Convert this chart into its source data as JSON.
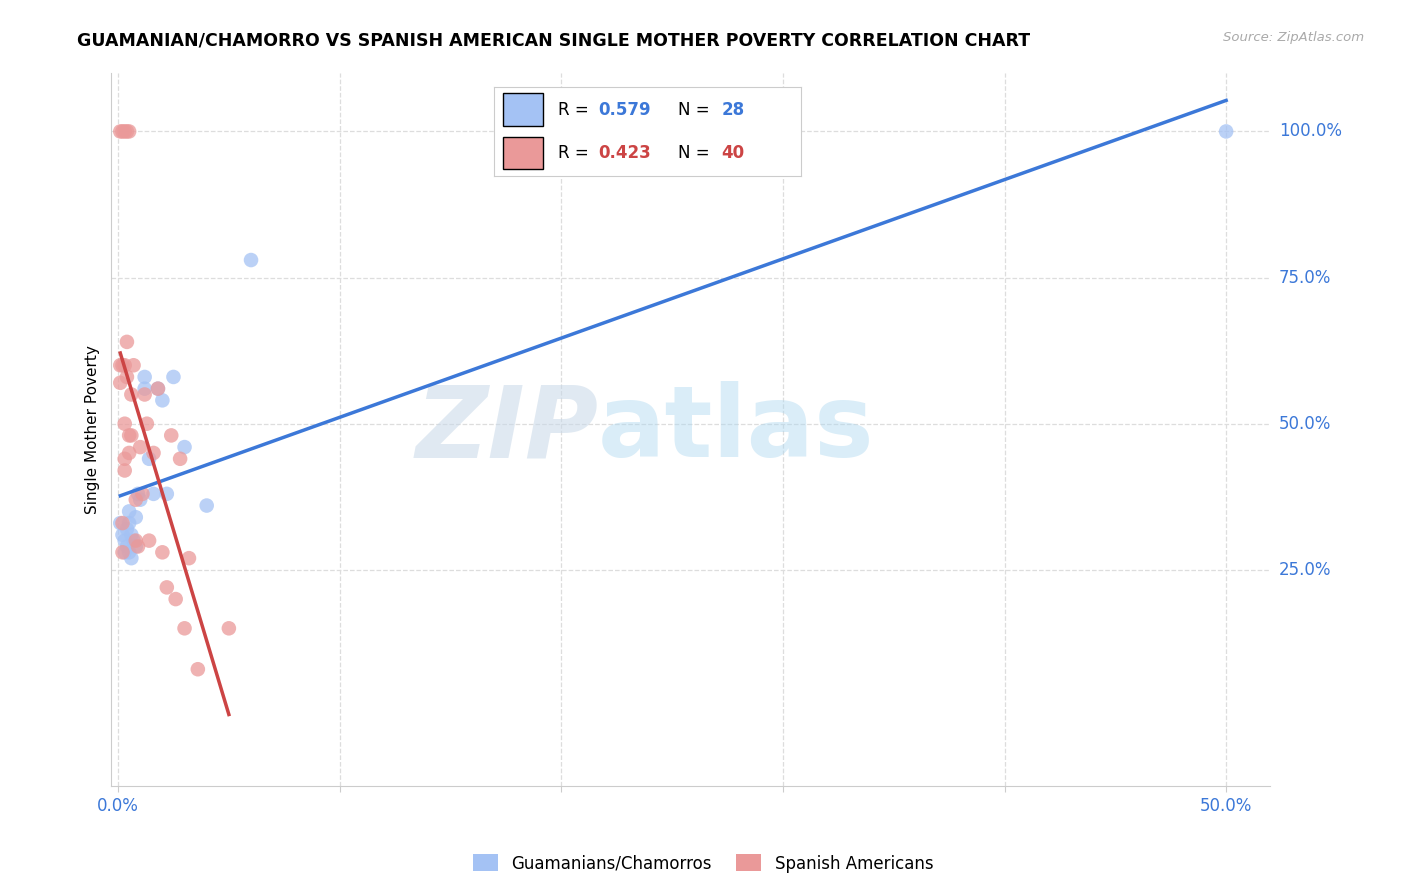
{
  "title": "GUAMANIAN/CHAMORRO VS SPANISH AMERICAN SINGLE MOTHER POVERTY CORRELATION CHART",
  "source": "Source: ZipAtlas.com",
  "ylabel": "Single Mother Poverty",
  "blue_color": "#a4c2f4",
  "pink_color": "#ea9999",
  "blue_line_color": "#3c78d8",
  "pink_line_color": "#cc4444",
  "r_blue": 0.579,
  "n_blue": 28,
  "r_pink": 0.423,
  "n_pink": 40,
  "legend_label_blue": "Guamanians/Chamorros",
  "legend_label_pink": "Spanish Americans",
  "watermark_zip": "ZIP",
  "watermark_atlas": "atlas",
  "xlim": [
    -0.003,
    0.52
  ],
  "ylim": [
    -0.12,
    1.1
  ],
  "blue_scatter_x": [
    0.001,
    0.002,
    0.003,
    0.003,
    0.004,
    0.004,
    0.005,
    0.005,
    0.005,
    0.006,
    0.006,
    0.007,
    0.008,
    0.008,
    0.009,
    0.01,
    0.012,
    0.012,
    0.014,
    0.016,
    0.018,
    0.02,
    0.022,
    0.025,
    0.03,
    0.04,
    0.06,
    0.5
  ],
  "blue_scatter_y": [
    0.33,
    0.31,
    0.3,
    0.28,
    0.32,
    0.29,
    0.35,
    0.33,
    0.28,
    0.31,
    0.27,
    0.3,
    0.34,
    0.29,
    0.38,
    0.37,
    0.56,
    0.58,
    0.44,
    0.38,
    0.56,
    0.54,
    0.38,
    0.58,
    0.46,
    0.36,
    0.78,
    1.0
  ],
  "pink_scatter_x": [
    0.001,
    0.001,
    0.001,
    0.002,
    0.002,
    0.002,
    0.002,
    0.003,
    0.003,
    0.003,
    0.003,
    0.003,
    0.004,
    0.004,
    0.004,
    0.005,
    0.005,
    0.005,
    0.006,
    0.006,
    0.007,
    0.008,
    0.008,
    0.009,
    0.01,
    0.011,
    0.012,
    0.013,
    0.014,
    0.016,
    0.018,
    0.02,
    0.022,
    0.024,
    0.026,
    0.028,
    0.03,
    0.032,
    0.036,
    0.05
  ],
  "pink_scatter_y": [
    0.6,
    0.57,
    1.0,
    0.28,
    0.6,
    1.0,
    0.33,
    0.6,
    0.5,
    0.44,
    0.42,
    1.0,
    0.64,
    0.58,
    1.0,
    0.48,
    0.45,
    1.0,
    0.55,
    0.48,
    0.6,
    0.37,
    0.3,
    0.29,
    0.46,
    0.38,
    0.55,
    0.5,
    0.3,
    0.45,
    0.56,
    0.28,
    0.22,
    0.48,
    0.2,
    0.44,
    0.15,
    0.27,
    0.08,
    0.15
  ]
}
